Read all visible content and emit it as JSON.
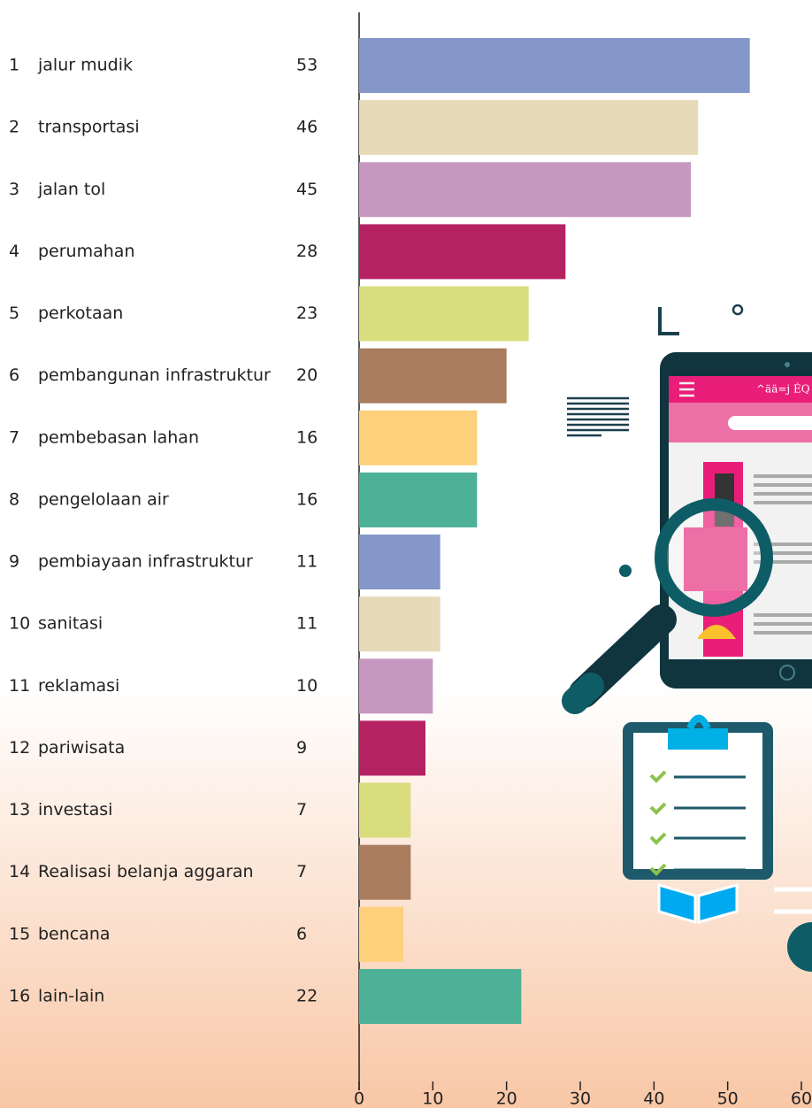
{
  "chart_data": {
    "type": "bar",
    "orientation": "horizontal",
    "ranks": [
      1,
      2,
      3,
      4,
      5,
      6,
      7,
      8,
      9,
      10,
      11,
      12,
      13,
      14,
      15,
      16
    ],
    "categories": [
      "jalur mudik",
      "transportasi",
      "jalan tol",
      "perumahan",
      "perkotaan",
      "pembangunan infrastruktur",
      "pembebasan lahan",
      "pengelolaan air",
      "pembiayaan infrastruktur",
      "sanitasi",
      "reklamasi",
      "pariwisata",
      "investasi",
      "Realisasi belanja aggaran",
      "bencana",
      "lain-lain"
    ],
    "values": [
      53,
      46,
      45,
      28,
      23,
      20,
      16,
      16,
      11,
      11,
      10,
      9,
      7,
      7,
      6,
      22
    ],
    "colors": [
      "#8497c8",
      "#e6dab9",
      "#c698c1",
      "#b52262",
      "#d9dd7d",
      "#a97c5e",
      "#fdd07b",
      "#4cb196",
      "#8497c8",
      "#e6dab9",
      "#c698c1",
      "#b52262",
      "#d9dd7d",
      "#a97c5e",
      "#fdd07b",
      "#4cb196"
    ],
    "xlim": [
      0,
      60
    ],
    "xticks": [
      0,
      10,
      20,
      30,
      40,
      50,
      60
    ]
  },
  "illustration": {
    "tablet_header": "^ää=j ÉQ"
  }
}
